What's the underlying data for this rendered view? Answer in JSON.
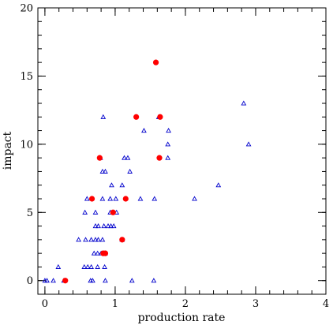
{
  "chart_data": {
    "type": "scatter",
    "title": "",
    "xlabel": "production rate",
    "ylabel": "impact",
    "xlim": [
      -0.1,
      4
    ],
    "ylim": [
      -1,
      20
    ],
    "x_ticks": [
      0,
      1,
      2,
      3,
      4
    ],
    "y_ticks": [
      0,
      5,
      10,
      15,
      20
    ],
    "x_minor_step": 0.2,
    "y_minor_step": 1,
    "grid": false,
    "series": [
      {
        "marker": "triangle",
        "color": "#0000cc",
        "points": [
          [
            0.0,
            0
          ],
          [
            0.03,
            0
          ],
          [
            0.12,
            0
          ],
          [
            0.27,
            0
          ],
          [
            0.65,
            0
          ],
          [
            0.68,
            0
          ],
          [
            0.86,
            0
          ],
          [
            1.24,
            0
          ],
          [
            1.55,
            0
          ],
          [
            0.19,
            1
          ],
          [
            0.56,
            1
          ],
          [
            0.61,
            1
          ],
          [
            0.66,
            1
          ],
          [
            0.75,
            1
          ],
          [
            0.85,
            1
          ],
          [
            0.7,
            2
          ],
          [
            0.75,
            2
          ],
          [
            0.8,
            2
          ],
          [
            0.86,
            2
          ],
          [
            0.48,
            3
          ],
          [
            0.58,
            3
          ],
          [
            0.66,
            3
          ],
          [
            0.72,
            3
          ],
          [
            0.76,
            3
          ],
          [
            0.82,
            3
          ],
          [
            1.1,
            3
          ],
          [
            0.72,
            4
          ],
          [
            0.76,
            4
          ],
          [
            0.84,
            4
          ],
          [
            0.9,
            4
          ],
          [
            0.94,
            4
          ],
          [
            0.98,
            4
          ],
          [
            0.57,
            5
          ],
          [
            0.72,
            5
          ],
          [
            0.93,
            5
          ],
          [
            1.02,
            5
          ],
          [
            0.6,
            6
          ],
          [
            0.82,
            6
          ],
          [
            0.93,
            6
          ],
          [
            1.01,
            6
          ],
          [
            1.36,
            6
          ],
          [
            1.56,
            6
          ],
          [
            2.13,
            6
          ],
          [
            0.95,
            7
          ],
          [
            1.1,
            7
          ],
          [
            2.47,
            7
          ],
          [
            0.82,
            8
          ],
          [
            0.86,
            8
          ],
          [
            1.21,
            8
          ],
          [
            0.79,
            9
          ],
          [
            1.13,
            9
          ],
          [
            1.18,
            9
          ],
          [
            1.75,
            9
          ],
          [
            1.75,
            10
          ],
          [
            2.9,
            10
          ],
          [
            1.41,
            11
          ],
          [
            1.76,
            11
          ],
          [
            0.83,
            12
          ],
          [
            1.62,
            12
          ],
          [
            2.83,
            13
          ]
        ]
      },
      {
        "marker": "circle",
        "color": "#ff0000",
        "points": [
          [
            0.29,
            0
          ],
          [
            0.83,
            2
          ],
          [
            0.86,
            2
          ],
          [
            1.1,
            3
          ],
          [
            0.97,
            5
          ],
          [
            0.67,
            6
          ],
          [
            1.15,
            6
          ],
          [
            0.78,
            9
          ],
          [
            1.63,
            9
          ],
          [
            1.3,
            12
          ],
          [
            1.64,
            12
          ],
          [
            1.58,
            16
          ]
        ]
      }
    ]
  }
}
